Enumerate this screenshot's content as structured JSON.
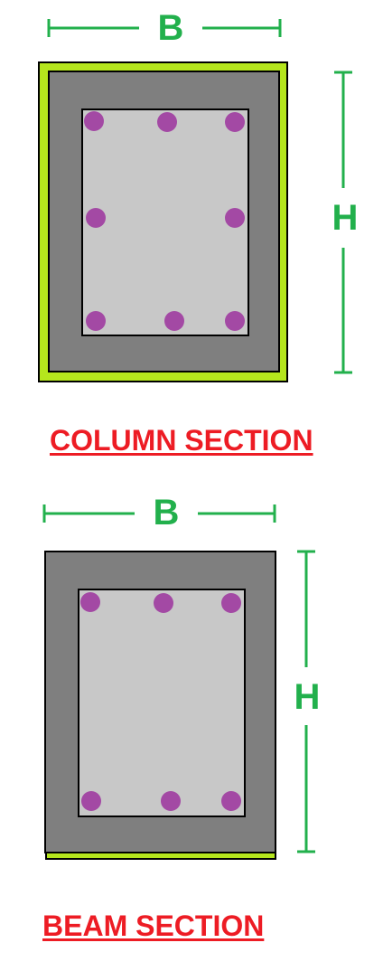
{
  "colors": {
    "dimension": "#22b04c",
    "concrete_outer": "#7f7f7f",
    "concrete_core": "#c8c8c8",
    "rebar": "#a349a4",
    "highlight_face": "#b5e61d",
    "outline": "#000000",
    "caption": "#ed1c24"
  },
  "column_section": {
    "caption": "COLUMN SECTION",
    "width_label": "B",
    "height_label": "H",
    "bar_rows": [
      3,
      2,
      3
    ],
    "highlighted_faces": [
      "top",
      "right",
      "bottom",
      "left"
    ]
  },
  "beam_section": {
    "caption": "BEAM SECTION",
    "width_label": "B",
    "height_label": "H",
    "bar_rows": [
      3,
      3
    ],
    "highlighted_faces": [
      "bottom"
    ]
  }
}
